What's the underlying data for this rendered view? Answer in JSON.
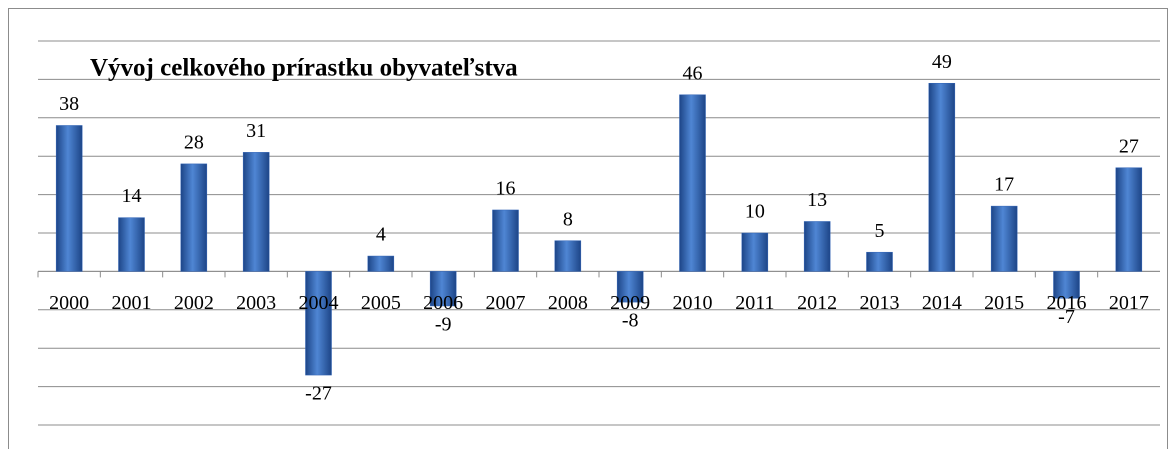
{
  "chart_data": {
    "type": "bar",
    "title": "Vývoj celkového prírastku obyvateľstva",
    "categories": [
      "2000",
      "2001",
      "2002",
      "2003",
      "2004",
      "2005",
      "2006",
      "2007",
      "2008",
      "2009",
      "2010",
      "2011",
      "2012",
      "2013",
      "2014",
      "2015",
      "2016",
      "2017"
    ],
    "values": [
      38,
      14,
      28,
      31,
      -27,
      4,
      -9,
      16,
      8,
      -8,
      46,
      10,
      13,
      5,
      49,
      17,
      -7,
      27
    ],
    "color": "#2f62b5",
    "ylim": [
      -40,
      60
    ],
    "yticks": [
      -40,
      -30,
      -20,
      -10,
      0,
      10,
      20,
      30,
      40,
      50,
      60
    ],
    "grid": true
  }
}
